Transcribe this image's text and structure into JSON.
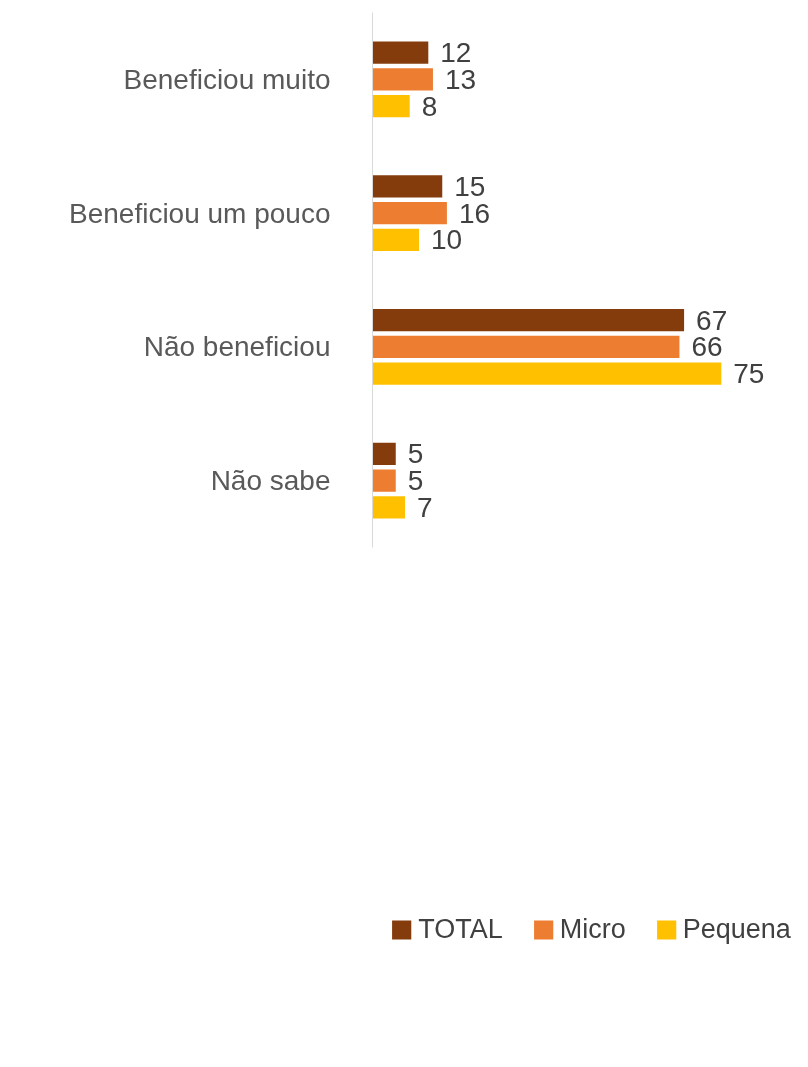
{
  "chart_data": {
    "type": "bar",
    "orientation": "horizontal",
    "data_labels": true,
    "legend": "bottom",
    "grid": false,
    "categories": [
      "Beneficiou muito",
      "Beneficiou um pouco",
      "Não beneficiou",
      "Não sabe"
    ],
    "series": [
      {
        "name": "TOTAL",
        "color": "#843c0c",
        "values": [
          12,
          15,
          67,
          5
        ]
      },
      {
        "name": "Micro",
        "color": "#ed7d31",
        "values": [
          13,
          16,
          66,
          5
        ]
      },
      {
        "name": "Pequena",
        "color": "#ffc000",
        "values": [
          8,
          10,
          75,
          7
        ]
      }
    ]
  }
}
